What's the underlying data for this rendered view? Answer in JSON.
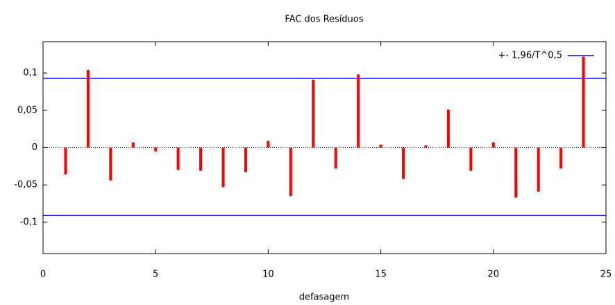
{
  "chart_data": {
    "type": "bar",
    "title": "FAC dos Resíduos",
    "x_label": "defasagem",
    "x": [
      1,
      2,
      3,
      4,
      5,
      6,
      7,
      8,
      9,
      10,
      11,
      12,
      13,
      14,
      15,
      16,
      17,
      18,
      19,
      20,
      21,
      22,
      23,
      24
    ],
    "values": [
      -0.036,
      0.104,
      -0.044,
      0.007,
      -0.005,
      -0.03,
      -0.031,
      -0.053,
      -0.033,
      0.009,
      -0.065,
      0.091,
      -0.028,
      0.098,
      0.004,
      -0.042,
      0.003,
      0.051,
      -0.031,
      0.007,
      -0.067,
      -0.059,
      -0.028,
      0.122
    ],
    "color": "#ff0000",
    "confidence_band": {
      "name": "+- 1,96/T^0,5",
      "color": "#0000ff",
      "values": [
        0.093,
        -0.091
      ]
    },
    "xlim": [
      0,
      25
    ],
    "xticks": [
      0,
      5,
      10,
      15,
      20,
      25
    ],
    "ylim": [
      -0.142,
      0.142
    ],
    "yticks": [
      {
        "value": -0.1,
        "label": "-0,1"
      },
      {
        "value": -0.05,
        "label": "-0,05"
      },
      0,
      {
        "value": 0.05,
        "label": "0,05"
      },
      {
        "value": 0.1,
        "label": "0,1"
      }
    ],
    "legend_position": "upper right"
  }
}
